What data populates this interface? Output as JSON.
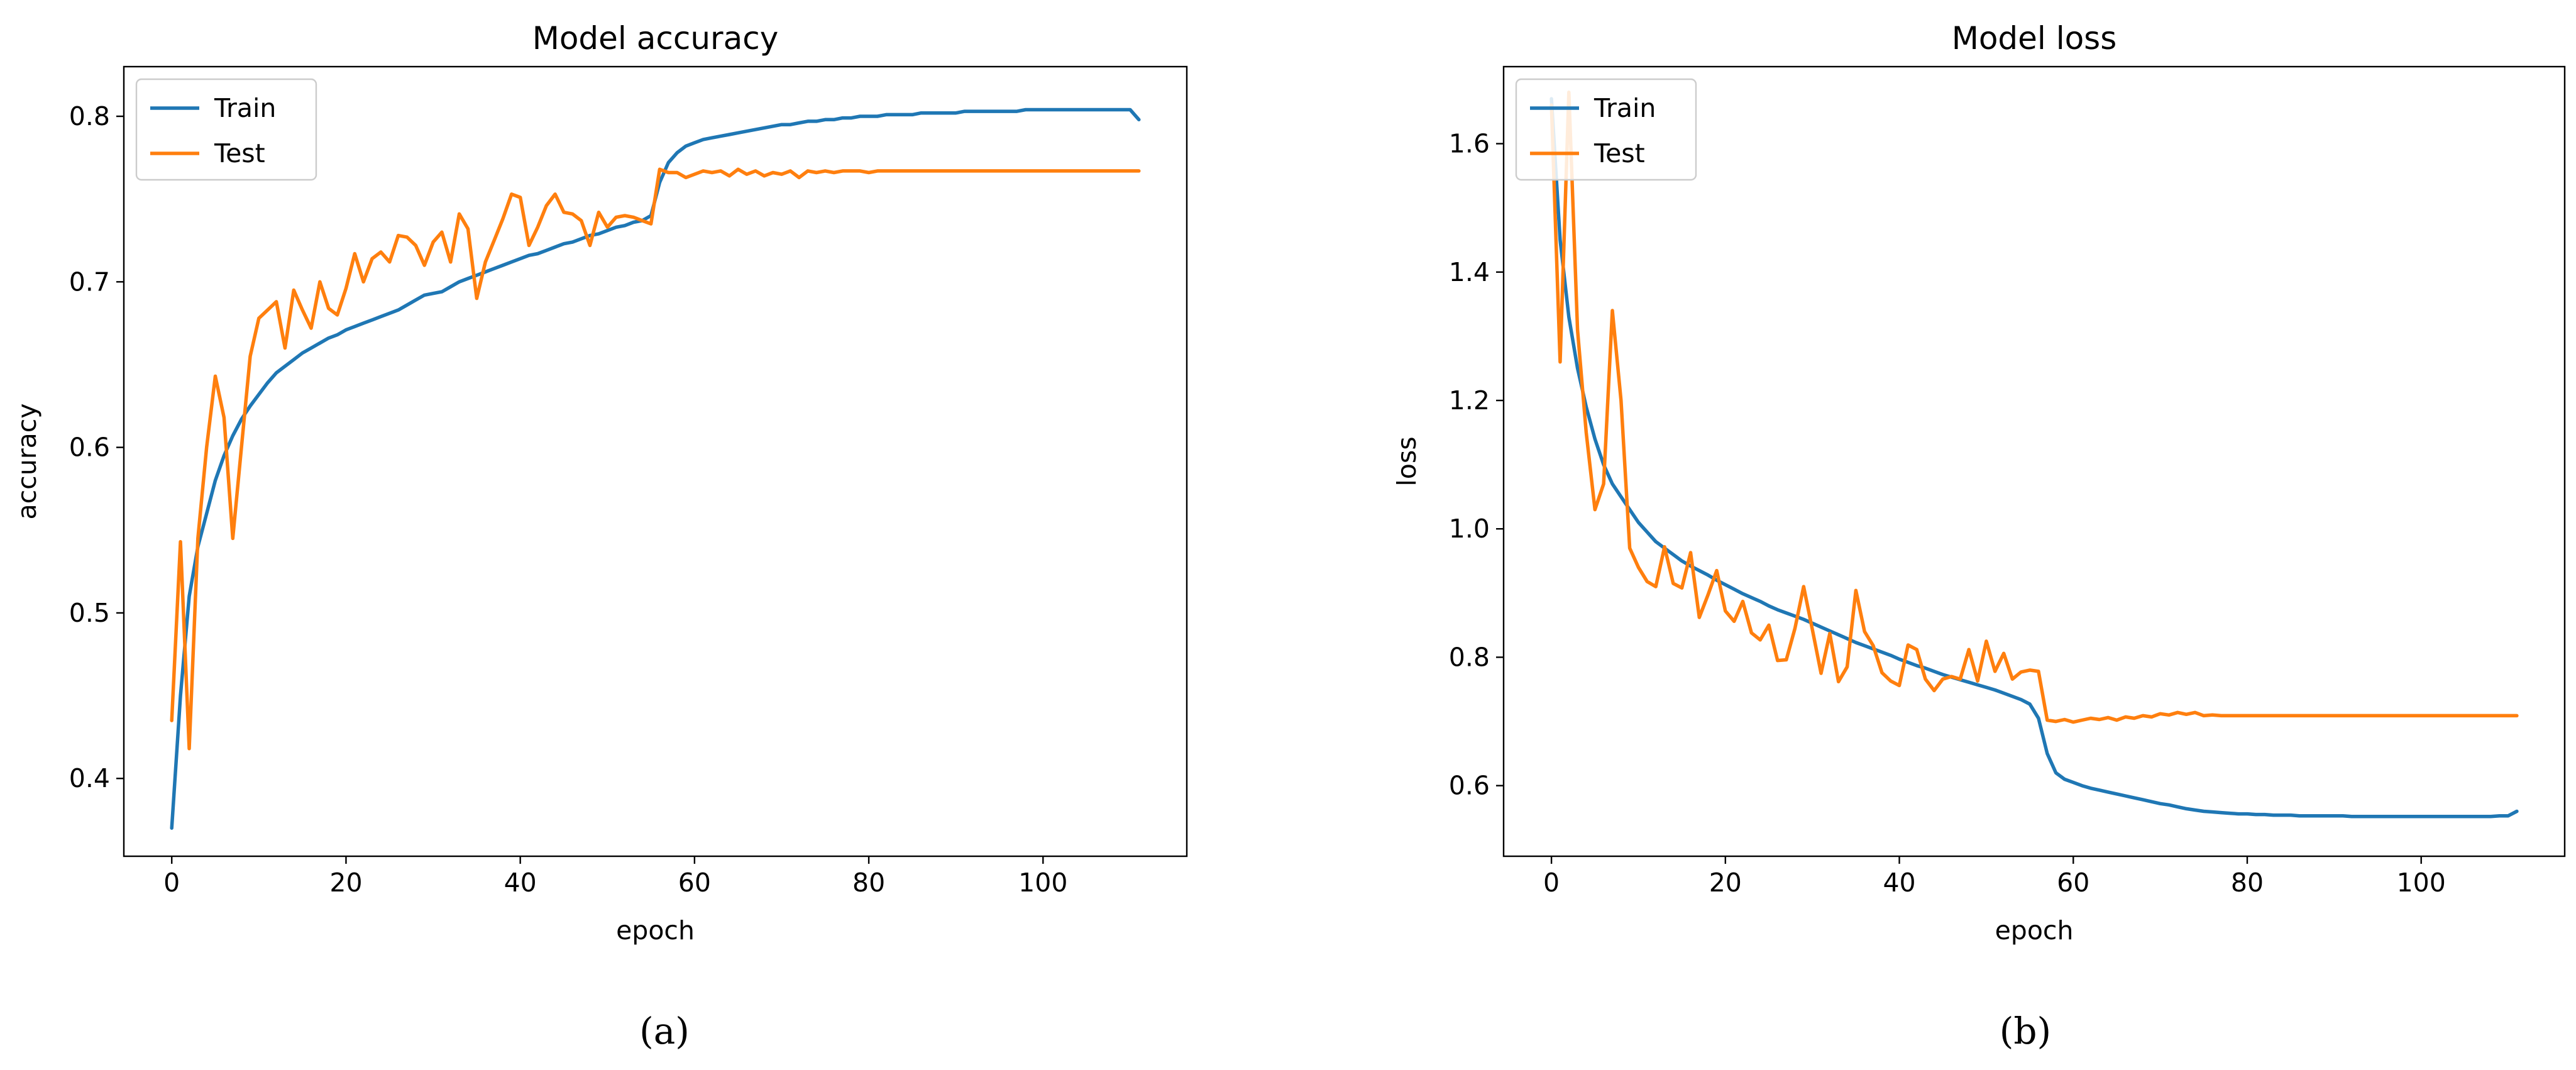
{
  "panel_labels": [
    "(a)",
    "(b)"
  ],
  "colors": {
    "train": "#1f77b4",
    "test": "#ff7f0e"
  },
  "chart_data": [
    {
      "type": "line",
      "title": "Model accuracy",
      "xlabel": "epoch",
      "ylabel": "accuracy",
      "xlim": [
        -5.5,
        116.5
      ],
      "ylim": [
        0.353,
        0.83
      ],
      "xticks": [
        0,
        20,
        40,
        60,
        80,
        100
      ],
      "yticks": [
        0.4,
        0.5,
        0.6,
        0.7,
        0.8
      ],
      "xtick_labels": [
        "0",
        "20",
        "40",
        "60",
        "80",
        "100"
      ],
      "ytick_labels": [
        "0.4",
        "0.5",
        "0.6",
        "0.7",
        "0.8"
      ],
      "legend_position": "top-left",
      "series": [
        {
          "name": "Train",
          "color": "#1f77b4",
          "values": [
            0.37,
            0.45,
            0.51,
            0.54,
            0.56,
            0.58,
            0.595,
            0.607,
            0.617,
            0.625,
            0.632,
            0.639,
            0.645,
            0.649,
            0.653,
            0.657,
            0.66,
            0.663,
            0.666,
            0.668,
            0.671,
            0.673,
            0.675,
            0.677,
            0.679,
            0.681,
            0.683,
            0.686,
            0.689,
            0.692,
            0.693,
            0.694,
            0.697,
            0.7,
            0.702,
            0.704,
            0.706,
            0.708,
            0.71,
            0.712,
            0.714,
            0.716,
            0.717,
            0.719,
            0.721,
            0.723,
            0.724,
            0.726,
            0.728,
            0.729,
            0.731,
            0.733,
            0.734,
            0.736,
            0.737,
            0.74,
            0.76,
            0.772,
            0.778,
            0.782,
            0.784,
            0.786,
            0.787,
            0.788,
            0.789,
            0.79,
            0.791,
            0.792,
            0.793,
            0.794,
            0.795,
            0.795,
            0.796,
            0.797,
            0.797,
            0.798,
            0.798,
            0.799,
            0.799,
            0.8,
            0.8,
            0.8,
            0.801,
            0.801,
            0.801,
            0.801,
            0.802,
            0.802,
            0.802,
            0.802,
            0.802,
            0.803,
            0.803,
            0.803,
            0.803,
            0.803,
            0.803,
            0.803,
            0.804,
            0.804,
            0.804,
            0.804,
            0.804,
            0.804,
            0.804,
            0.804,
            0.804,
            0.804,
            0.804,
            0.804,
            0.804,
            0.798
          ]
        },
        {
          "name": "Test",
          "color": "#ff7f0e",
          "values": [
            0.435,
            0.543,
            0.418,
            0.545,
            0.6,
            0.643,
            0.618,
            0.545,
            0.6,
            0.655,
            0.678,
            0.683,
            0.688,
            0.66,
            0.695,
            0.683,
            0.672,
            0.7,
            0.684,
            0.68,
            0.696,
            0.717,
            0.7,
            0.714,
            0.718,
            0.712,
            0.728,
            0.727,
            0.722,
            0.71,
            0.724,
            0.73,
            0.712,
            0.741,
            0.732,
            0.69,
            0.712,
            0.725,
            0.738,
            0.753,
            0.751,
            0.722,
            0.733,
            0.746,
            0.753,
            0.742,
            0.741,
            0.737,
            0.722,
            0.742,
            0.733,
            0.739,
            0.74,
            0.739,
            0.737,
            0.735,
            0.768,
            0.766,
            0.766,
            0.763,
            0.765,
            0.767,
            0.766,
            0.767,
            0.764,
            0.768,
            0.765,
            0.767,
            0.764,
            0.766,
            0.765,
            0.767,
            0.763,
            0.767,
            0.766,
            0.767,
            0.766,
            0.767,
            0.767,
            0.767,
            0.766,
            0.767,
            0.767,
            0.767,
            0.767,
            0.767,
            0.767,
            0.767,
            0.767,
            0.767,
            0.767,
            0.767,
            0.767,
            0.767,
            0.767,
            0.767,
            0.767,
            0.767,
            0.767,
            0.767,
            0.767,
            0.767,
            0.767,
            0.767,
            0.767,
            0.767,
            0.767,
            0.767,
            0.767,
            0.767,
            0.767,
            0.767
          ]
        }
      ]
    },
    {
      "type": "line",
      "title": "Model loss",
      "xlabel": "epoch",
      "ylabel": "loss",
      "xlim": [
        -5.5,
        116.5
      ],
      "ylim": [
        0.49,
        1.72
      ],
      "xticks": [
        0,
        20,
        40,
        60,
        80,
        100
      ],
      "yticks": [
        0.6,
        0.8,
        1.0,
        1.2,
        1.4,
        1.6
      ],
      "xtick_labels": [
        "0",
        "20",
        "40",
        "60",
        "80",
        "100"
      ],
      "ytick_labels": [
        "0.6",
        "0.8",
        "1.0",
        "1.2",
        "1.4",
        "1.6"
      ],
      "legend_position": "top-left",
      "series": [
        {
          "name": "Train",
          "color": "#1f77b4",
          "values": [
            1.67,
            1.45,
            1.33,
            1.25,
            1.19,
            1.14,
            1.1,
            1.07,
            1.05,
            1.03,
            1.01,
            0.995,
            0.98,
            0.97,
            0.96,
            0.95,
            0.942,
            0.935,
            0.928,
            0.92,
            0.913,
            0.906,
            0.899,
            0.893,
            0.887,
            0.88,
            0.874,
            0.869,
            0.864,
            0.859,
            0.853,
            0.847,
            0.841,
            0.835,
            0.829,
            0.823,
            0.818,
            0.813,
            0.808,
            0.803,
            0.797,
            0.792,
            0.787,
            0.783,
            0.778,
            0.773,
            0.769,
            0.765,
            0.761,
            0.757,
            0.753,
            0.749,
            0.744,
            0.739,
            0.734,
            0.727,
            0.705,
            0.65,
            0.62,
            0.61,
            0.605,
            0.6,
            0.596,
            0.593,
            0.59,
            0.587,
            0.584,
            0.581,
            0.578,
            0.575,
            0.572,
            0.57,
            0.567,
            0.564,
            0.562,
            0.56,
            0.559,
            0.558,
            0.557,
            0.556,
            0.556,
            0.555,
            0.555,
            0.554,
            0.554,
            0.554,
            0.553,
            0.553,
            0.553,
            0.553,
            0.553,
            0.553,
            0.552,
            0.552,
            0.552,
            0.552,
            0.552,
            0.552,
            0.552,
            0.552,
            0.552,
            0.552,
            0.552,
            0.552,
            0.552,
            0.552,
            0.552,
            0.552,
            0.552,
            0.553,
            0.553,
            0.56
          ]
        },
        {
          "name": "Test",
          "color": "#ff7f0e",
          "values": [
            1.66,
            1.26,
            1.68,
            1.31,
            1.15,
            1.03,
            1.07,
            1.34,
            1.2,
            0.97,
            0.94,
            0.918,
            0.91,
            0.972,
            0.915,
            0.908,
            0.963,
            0.862,
            0.897,
            0.935,
            0.872,
            0.856,
            0.887,
            0.838,
            0.827,
            0.85,
            0.795,
            0.796,
            0.845,
            0.91,
            0.843,
            0.775,
            0.837,
            0.762,
            0.785,
            0.904,
            0.84,
            0.818,
            0.776,
            0.763,
            0.756,
            0.819,
            0.812,
            0.766,
            0.748,
            0.766,
            0.77,
            0.766,
            0.812,
            0.763,
            0.825,
            0.778,
            0.806,
            0.766,
            0.777,
            0.78,
            0.778,
            0.702,
            0.7,
            0.703,
            0.699,
            0.702,
            0.705,
            0.703,
            0.706,
            0.702,
            0.707,
            0.705,
            0.709,
            0.707,
            0.712,
            0.71,
            0.714,
            0.711,
            0.714,
            0.709,
            0.71,
            0.709,
            0.709,
            0.709,
            0.709,
            0.709,
            0.709,
            0.709,
            0.709,
            0.709,
            0.709,
            0.709,
            0.709,
            0.709,
            0.709,
            0.709,
            0.709,
            0.709,
            0.709,
            0.709,
            0.709,
            0.709,
            0.709,
            0.709,
            0.709,
            0.709,
            0.709,
            0.709,
            0.709,
            0.709,
            0.709,
            0.709,
            0.709,
            0.709,
            0.709,
            0.709
          ]
        }
      ]
    }
  ]
}
